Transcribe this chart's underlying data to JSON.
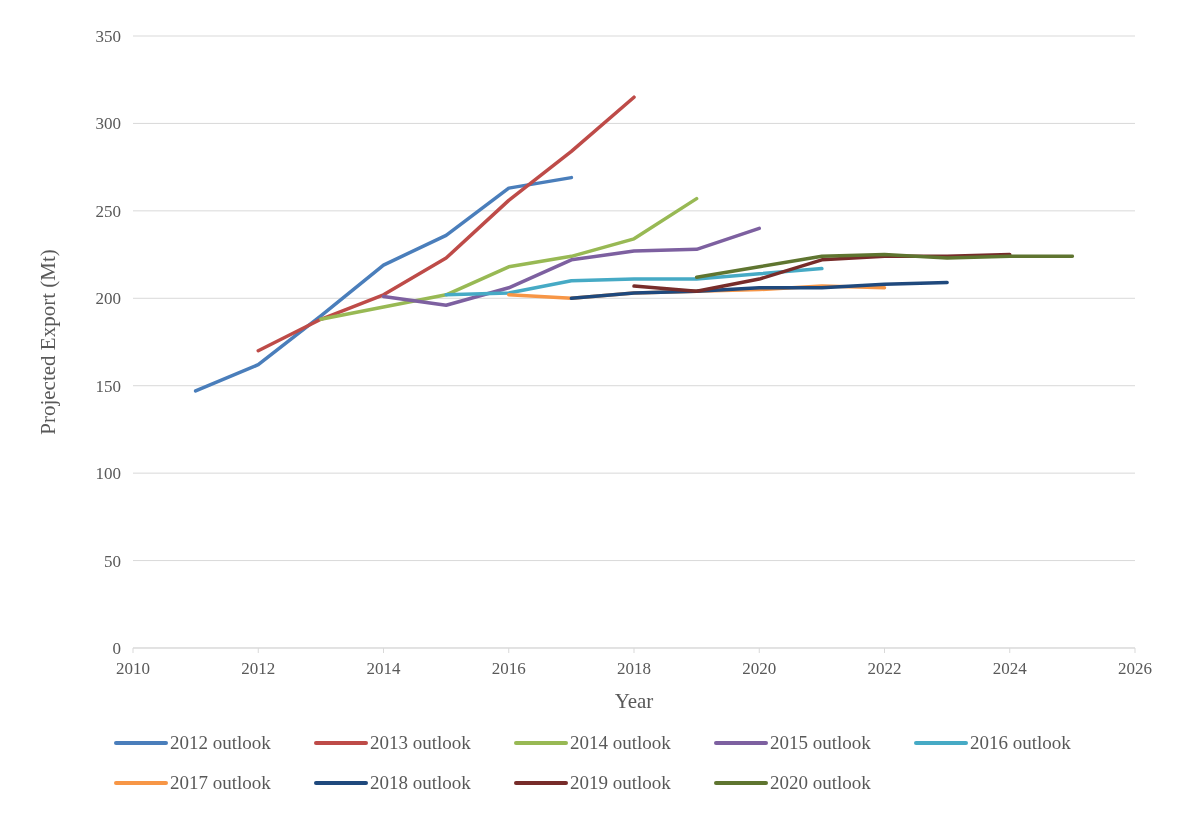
{
  "chart_data": {
    "type": "line",
    "xlabel": "Year",
    "ylabel": "Projected Export (Mt)",
    "xlim": [
      2010,
      2026
    ],
    "xticks": [
      2010,
      2012,
      2014,
      2016,
      2018,
      2020,
      2022,
      2024,
      2026
    ],
    "ylim": [
      0,
      350
    ],
    "yticks": [
      0,
      50,
      100,
      150,
      200,
      250,
      300,
      350
    ],
    "grid": "y",
    "legend": "bottom",
    "line_style": "solid",
    "marker": "none",
    "series": [
      {
        "name": "2012 outlook",
        "color": "#4a7ebb",
        "x": [
          2011,
          2012,
          2013,
          2014,
          2015,
          2016,
          2017
        ],
        "values": [
          147,
          162,
          190,
          219,
          236,
          263,
          269
        ]
      },
      {
        "name": "2013 outlook",
        "color": "#be4b48",
        "x": [
          2012,
          2013,
          2014,
          2015,
          2016,
          2017,
          2018
        ],
        "values": [
          170,
          188,
          202,
          223,
          256,
          284,
          315
        ]
      },
      {
        "name": "2014 outlook",
        "color": "#98b954",
        "x": [
          2013,
          2014,
          2015,
          2016,
          2017,
          2018,
          2019
        ],
        "values": [
          188,
          195,
          202,
          218,
          224,
          234,
          257
        ]
      },
      {
        "name": "2015 outlook",
        "color": "#7d60a0",
        "x": [
          2014,
          2015,
          2016,
          2017,
          2018,
          2019,
          2020
        ],
        "values": [
          201,
          196,
          206,
          222,
          227,
          228,
          240
        ]
      },
      {
        "name": "2016 outlook",
        "color": "#46aac5",
        "x": [
          2015,
          2016,
          2017,
          2018,
          2019,
          2020,
          2021
        ],
        "values": [
          202,
          203,
          210,
          211,
          211,
          214,
          217
        ]
      },
      {
        "name": "2017 outlook",
        "color": "#f79646",
        "x": [
          2016,
          2017,
          2018,
          2019,
          2020,
          2021,
          2022
        ],
        "values": [
          202,
          200,
          203,
          204,
          205,
          207,
          206
        ]
      },
      {
        "name": "2018 outlook",
        "color": "#1f497d",
        "x": [
          2017,
          2018,
          2019,
          2020,
          2021,
          2022,
          2023
        ],
        "values": [
          200,
          203,
          204,
          206,
          206,
          208,
          209
        ]
      },
      {
        "name": "2019 outlook",
        "color": "#772c2a",
        "x": [
          2018,
          2019,
          2020,
          2021,
          2022,
          2023,
          2024
        ],
        "values": [
          207,
          204,
          211,
          222,
          224,
          224,
          225
        ]
      },
      {
        "name": "2020 outlook",
        "color": "#5f7530",
        "x": [
          2019,
          2020,
          2021,
          2022,
          2023,
          2024,
          2025
        ],
        "values": [
          212,
          218,
          224,
          225,
          223,
          224,
          224
        ]
      }
    ]
  }
}
